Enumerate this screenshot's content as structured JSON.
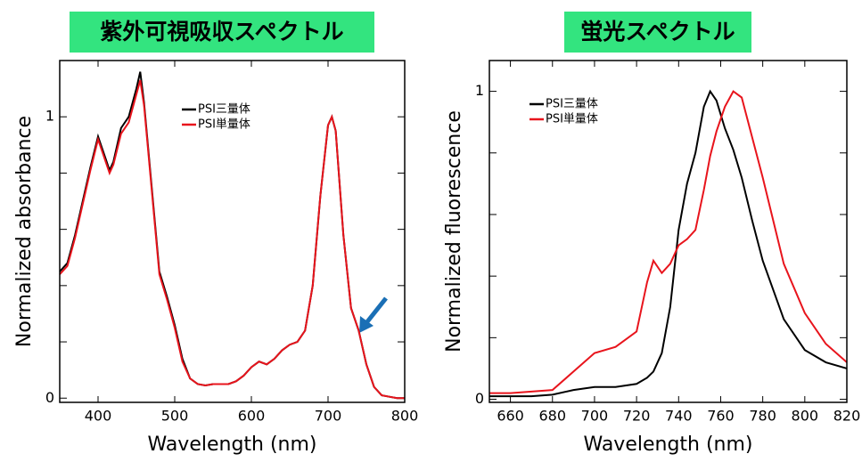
{
  "chart_data": [
    {
      "type": "line",
      "title": "紫外可視吸収スペクトル",
      "xlabel": "Wavelength (nm)",
      "ylabel": "Normalized absorbance",
      "x": [
        350,
        360,
        370,
        380,
        390,
        400,
        410,
        415,
        420,
        430,
        440,
        450,
        455,
        460,
        470,
        480,
        490,
        500,
        510,
        520,
        530,
        540,
        550,
        560,
        570,
        580,
        590,
        600,
        610,
        620,
        630,
        640,
        650,
        660,
        670,
        680,
        690,
        700,
        705,
        710,
        720,
        730,
        740,
        750,
        760,
        770,
        780,
        790,
        800
      ],
      "series": [
        {
          "name": "PSI三量体",
          "color": "#000000",
          "values": [
            0.45,
            0.48,
            0.58,
            0.7,
            0.82,
            0.93,
            0.85,
            0.81,
            0.84,
            0.96,
            1.0,
            1.1,
            1.16,
            1.05,
            0.75,
            0.45,
            0.36,
            0.26,
            0.14,
            0.07,
            0.05,
            0.045,
            0.05,
            0.05,
            0.05,
            0.06,
            0.08,
            0.11,
            0.13,
            0.12,
            0.14,
            0.17,
            0.19,
            0.2,
            0.24,
            0.4,
            0.72,
            0.97,
            1.0,
            0.95,
            0.58,
            0.32,
            0.24,
            0.12,
            0.04,
            0.01,
            0.005,
            0,
            0
          ]
        },
        {
          "name": "PSI単量体",
          "color": "#e8141c",
          "values": [
            0.44,
            0.47,
            0.57,
            0.69,
            0.81,
            0.92,
            0.84,
            0.8,
            0.83,
            0.94,
            0.98,
            1.08,
            1.13,
            1.04,
            0.74,
            0.44,
            0.35,
            0.25,
            0.13,
            0.07,
            0.05,
            0.045,
            0.05,
            0.05,
            0.05,
            0.06,
            0.08,
            0.11,
            0.13,
            0.12,
            0.14,
            0.17,
            0.19,
            0.2,
            0.24,
            0.4,
            0.72,
            0.97,
            1.0,
            0.95,
            0.58,
            0.32,
            0.24,
            0.12,
            0.04,
            0.01,
            0.005,
            0,
            0
          ]
        }
      ],
      "xlim": [
        350,
        800
      ],
      "xticks": [
        400,
        500,
        600,
        700,
        800
      ],
      "ylim": [
        -0.015,
        1.2
      ],
      "yticks": [
        0,
        1
      ],
      "yminorticks": [
        0.2,
        0.4,
        0.6,
        0.8
      ]
    },
    {
      "type": "line",
      "title": "蛍光スペクトル",
      "xlabel": "Wavelength (nm)",
      "ylabel": "Normalized fluorescence",
      "x": [
        650,
        660,
        670,
        680,
        690,
        700,
        710,
        720,
        725,
        728,
        732,
        736,
        740,
        744,
        748,
        752,
        755,
        758,
        762,
        766,
        770,
        775,
        780,
        790,
        800,
        810,
        820
      ],
      "series": [
        {
          "name": "PSI三量体",
          "color": "#000000",
          "values": [
            0.01,
            0.01,
            0.01,
            0.015,
            0.03,
            0.04,
            0.04,
            0.05,
            0.07,
            0.09,
            0.15,
            0.3,
            0.55,
            0.7,
            0.8,
            0.95,
            1.0,
            0.97,
            0.88,
            0.81,
            0.72,
            0.58,
            0.45,
            0.26,
            0.16,
            0.12,
            0.1
          ]
        },
        {
          "name": "PSI単量体",
          "color": "#e8141c",
          "values": [
            0.02,
            0.02,
            0.025,
            0.03,
            0.09,
            0.15,
            0.17,
            0.22,
            0.38,
            0.45,
            0.41,
            0.44,
            0.5,
            0.52,
            0.55,
            0.68,
            0.79,
            0.87,
            0.95,
            1.0,
            0.98,
            0.85,
            0.72,
            0.44,
            0.28,
            0.18,
            0.12
          ]
        }
      ],
      "xlim": [
        650,
        820
      ],
      "xticks": [
        660,
        680,
        700,
        720,
        740,
        760,
        780,
        800,
        820
      ],
      "ylim": [
        -0.01,
        1.1
      ],
      "yticks": [
        0,
        1
      ],
      "yminorticks": [
        0.2,
        0.4,
        0.6,
        0.8
      ]
    }
  ]
}
